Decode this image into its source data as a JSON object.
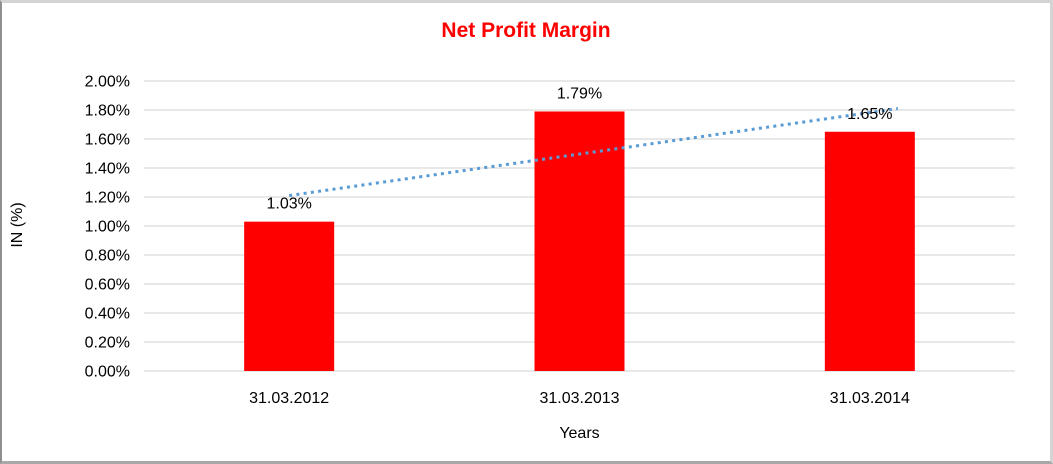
{
  "chart_data": {
    "type": "bar",
    "title": "Net Profit Margin",
    "title_color": "#ff0000",
    "categories": [
      "31.03.2012",
      "31.03.2013",
      "31.03.2014"
    ],
    "values": [
      1.03,
      1.79,
      1.65
    ],
    "value_labels": [
      "1.03%",
      "1.79%",
      "1.65%"
    ],
    "bar_color": "#ff0000",
    "xlabel": "Years",
    "ylabel": "IN (%)",
    "ylim": [
      0,
      2.0
    ],
    "ytick_step": 0.2,
    "ytick_labels": [
      "0.00%",
      "0.20%",
      "0.40%",
      "0.60%",
      "0.80%",
      "1.00%",
      "1.20%",
      "1.40%",
      "1.60%",
      "1.80%",
      "2.00%"
    ],
    "grid": true,
    "gridline_color": "#d9d9d9",
    "legend": "none",
    "trendline": {
      "style": "dotted",
      "color": "#5b9bd5",
      "start_value": 1.21,
      "end_value": 1.81
    }
  }
}
